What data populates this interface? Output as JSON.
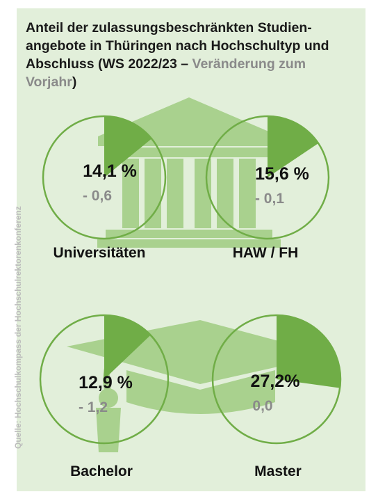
{
  "title": {
    "main": "Anteil der zulassungsbeschränkten Studien-angebote in Thüringen nach Hochschultyp und Abschluss (WS 2022/23 – ",
    "highlight": "Veränderung zum Vorjahr",
    "end": ")"
  },
  "source": "Quelle: Hochschulkompass der Hochschulrektorenkonferenz",
  "colors": {
    "background": "#e2efda",
    "slice": "#70ad47",
    "ring": "#70ad47",
    "icon": "#a9d18e",
    "change_text": "#8a8a8a"
  },
  "icons": [
    "university-building-icon",
    "graduation-cap-icon"
  ],
  "chart_data": [
    {
      "type": "pie",
      "label": "Universitäten",
      "value": 14.1,
      "value_text": "14,1 %",
      "change_text": "- 0,6"
    },
    {
      "type": "pie",
      "label": "HAW / FH",
      "value": 15.6,
      "value_text": "15,6 %",
      "change_text": "- 0,1"
    },
    {
      "type": "pie",
      "label": "Bachelor",
      "value": 12.9,
      "value_text": "12,9 %",
      "change_text": "- 1,2"
    },
    {
      "type": "pie",
      "label": "Master",
      "value": 27.2,
      "value_text": "27,2%",
      "change_text": "0,0"
    }
  ]
}
